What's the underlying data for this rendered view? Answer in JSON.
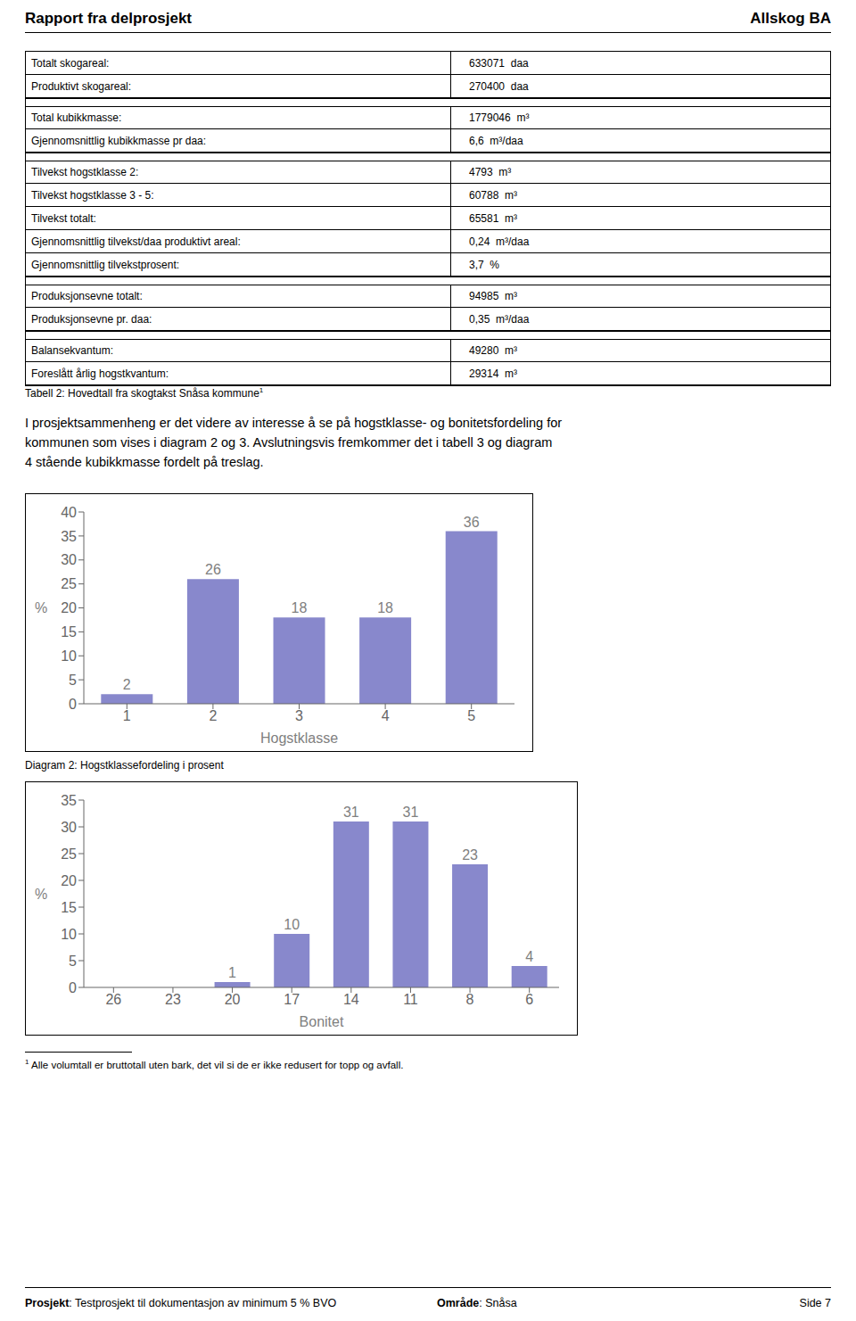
{
  "page": {
    "header_left": "Rapport fra delprosjekt",
    "header_right": "Allskog BA",
    "table_sections": [
      [
        [
          "Totalt skogareal:",
          "633071  daa"
        ],
        [
          "Produktivt skogareal:",
          "270400  daa"
        ]
      ],
      [
        [
          "Total kubikkmasse:",
          "1779046  m³"
        ],
        [
          "Gjennomsnittlig kubikkmasse pr daa:",
          "6,6  m³/daa"
        ]
      ],
      [
        [
          "Tilvekst hogstklasse 2:",
          "4793  m³"
        ],
        [
          "Tilvekst hogstklasse 3 - 5:",
          "60788  m³"
        ],
        [
          "Tilvekst totalt:",
          "65581  m³"
        ],
        [
          "Gjennomsnittlig tilvekst/daa produktivt areal:",
          "0,24  m³/daa"
        ],
        [
          "Gjennomsnittlig tilvekstprosent:",
          "3,7  %"
        ]
      ],
      [
        [
          "Produksjonsevne totalt:",
          "94985  m³"
        ],
        [
          "Produksjonsevne pr. daa:",
          "0,35  m³/daa"
        ]
      ],
      [
        [
          "Balansekvantum:",
          "49280  m³"
        ],
        [
          "Foreslått årlig hogstkvantum:",
          "29314  m³"
        ]
      ]
    ],
    "table_caption": "Tabell 2: Hovedtall fra skogtakst Snåsa kommune",
    "table_caption_note": "1",
    "body_lines": [
      "I prosjektsammenheng er det videre av interesse å se på hogstklasse- og bonitetsfordeling for",
      "kommunen som vises i diagram 2 og 3. Avslutningsvis fremkommer det i tabell 3 og diagram",
      "4 stående kubikkmasse fordelt på treslag."
    ],
    "footnote_mark": "1",
    "footnote_text": "Alle volumtall er bruttotall uten bark, det vil si de er ikke redusert for topp og avfall.",
    "footer": {
      "left_bold": "Prosjekt",
      "left_normal": ": Testprosjekt til dokumentasjon av minimum 5 % BVO",
      "mid_bold": "Område",
      "mid_normal": ": Snåsa",
      "right": "Side 7"
    }
  },
  "chart_data": [
    {
      "type": "bar",
      "title": "Diagram 2: Hogstklassefordeling i prosent",
      "x_label": "Hogstklasse",
      "y_label": "%",
      "categories": [
        "1",
        "2",
        "3",
        "4",
        "5"
      ],
      "values": [
        2,
        26,
        18,
        18,
        36
      ],
      "color": "#8888cc",
      "ylim": [
        0,
        40
      ],
      "yticks": [
        0,
        5,
        10,
        15,
        20,
        25,
        30,
        35,
        40
      ],
      "grid": false,
      "data_labels": true
    },
    {
      "type": "bar",
      "x_label": "Bonitet",
      "y_label": "%",
      "categories": [
        "26",
        "23",
        "20",
        "17",
        "14",
        "11",
        "8",
        "6"
      ],
      "values": [
        0,
        0,
        1,
        10,
        31,
        31,
        23,
        4
      ],
      "color": "#8888cc",
      "ylim": [
        0,
        35
      ],
      "yticks": [
        0,
        5,
        10,
        15,
        20,
        25,
        30,
        35
      ],
      "grid": false,
      "data_labels": true
    }
  ]
}
